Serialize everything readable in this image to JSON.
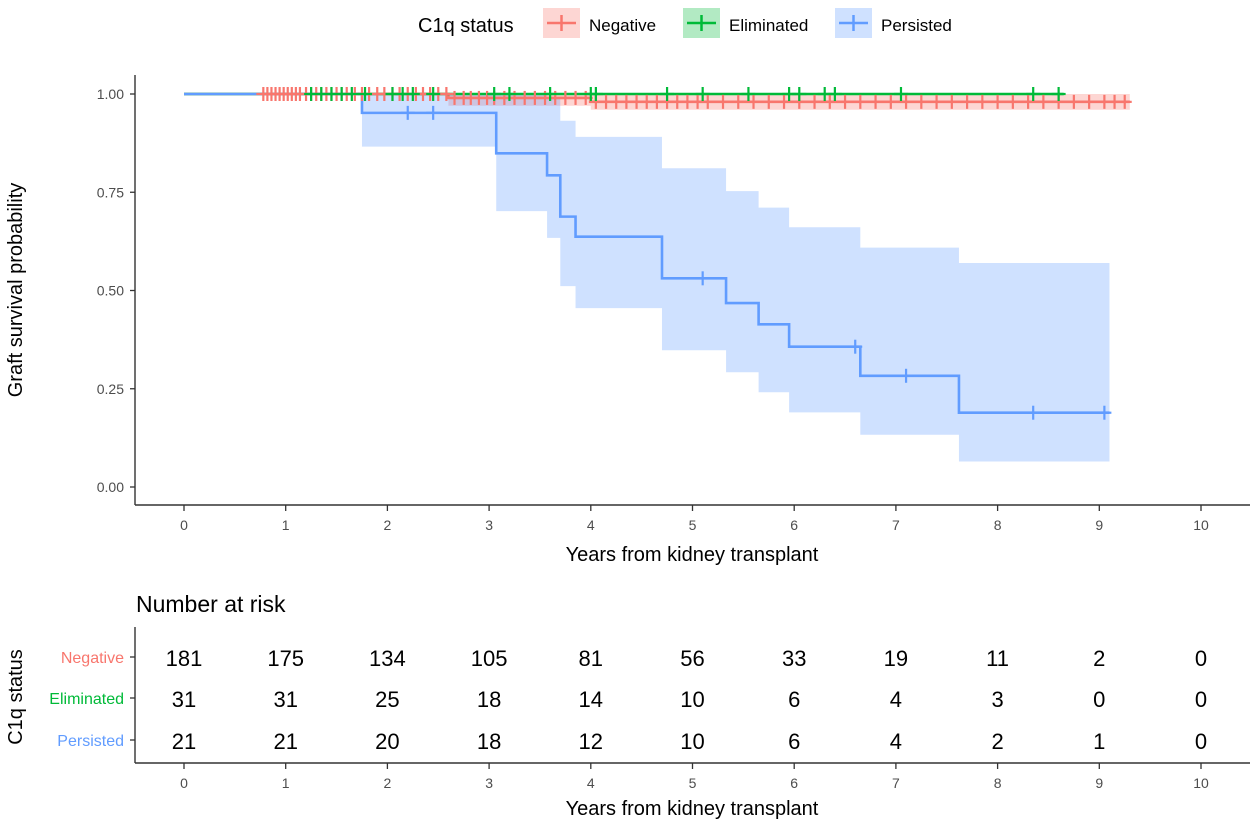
{
  "chart_data": {
    "type": "line",
    "subtype": "kaplan-meier step plot with confidence bands and number-at-risk table",
    "title": "",
    "xlabel": "Years from kidney transplant",
    "ylabel": "Graft survival probability",
    "xlim": [
      0,
      10
    ],
    "ylim": [
      0,
      1
    ],
    "x_ticks": [
      "0",
      "1",
      "2",
      "3",
      "4",
      "5",
      "6",
      "7",
      "8",
      "9",
      "10"
    ],
    "y_ticks": [
      "0.00",
      "0.25",
      "0.50",
      "0.75",
      "1.00"
    ],
    "legend": {
      "title": "C1q status",
      "position": "top",
      "entries": [
        "Negative",
        "Eliminated",
        "Persisted"
      ]
    },
    "series": [
      {
        "name": "Negative",
        "color": "#F8766D",
        "steps": [
          [
            0,
            1.0
          ],
          [
            2.6,
            0.99
          ],
          [
            4.0,
            0.98
          ],
          [
            9.3,
            0.98
          ]
        ],
        "ci_lower": [
          [
            0,
            1.0
          ],
          [
            2.6,
            0.97
          ],
          [
            4.0,
            0.96
          ],
          [
            9.3,
            0.96
          ]
        ],
        "ci_upper": [
          [
            0,
            1.0
          ],
          [
            2.6,
            1.0
          ],
          [
            4.0,
            1.0
          ],
          [
            9.3,
            1.0
          ]
        ],
        "censor_times": [
          0.78,
          0.82,
          0.86,
          0.9,
          0.94,
          0.98,
          1.02,
          1.06,
          1.1,
          1.14,
          1.2,
          1.25,
          1.3,
          1.35,
          1.4,
          1.45,
          1.5,
          1.55,
          1.6,
          1.68,
          1.75,
          1.82,
          1.9,
          1.97,
          2.05,
          2.12,
          2.2,
          2.28,
          2.35,
          2.42,
          2.5,
          2.58,
          2.66,
          2.75,
          2.82,
          2.9,
          2.98,
          3.05,
          3.15,
          3.25,
          3.35,
          3.45,
          3.55,
          3.65,
          3.75,
          3.85,
          3.95,
          4.05,
          4.15,
          4.25,
          4.35,
          4.45,
          4.55,
          4.65,
          4.75,
          4.85,
          4.95,
          5.05,
          5.15,
          5.3,
          5.45,
          5.6,
          5.75,
          5.9,
          6.05,
          6.2,
          6.35,
          6.5,
          6.65,
          6.8,
          6.95,
          7.1,
          7.25,
          7.4,
          7.55,
          7.7,
          7.85,
          8.0,
          8.15,
          8.3,
          8.45,
          8.6,
          8.75,
          8.9,
          9.05,
          9.15,
          9.25
        ]
      },
      {
        "name": "Eliminated",
        "color": "#00BA38",
        "steps": [
          [
            0,
            1.0
          ],
          [
            8.65,
            1.0
          ]
        ],
        "ci_lower": [
          [
            0,
            1.0
          ],
          [
            8.65,
            1.0
          ]
        ],
        "ci_upper": [
          [
            0,
            1.0
          ],
          [
            8.65,
            1.0
          ]
        ],
        "censor_times": [
          1.25,
          1.35,
          1.45,
          1.55,
          1.65,
          1.78,
          2.05,
          2.15,
          2.25,
          2.45,
          3.05,
          3.2,
          3.6,
          4.0,
          4.05,
          4.75,
          5.1,
          5.55,
          5.95,
          6.05,
          6.3,
          6.4,
          7.05,
          8.35,
          8.6
        ]
      },
      {
        "name": "Persisted",
        "color": "#619CFF",
        "steps": [
          [
            0,
            1.0
          ],
          [
            1.75,
            0.952
          ],
          [
            3.07,
            0.849
          ],
          [
            3.57,
            0.793
          ],
          [
            3.7,
            0.688
          ],
          [
            3.85,
            0.637
          ],
          [
            4.7,
            0.531
          ],
          [
            5.33,
            0.468
          ],
          [
            5.65,
            0.414
          ],
          [
            5.95,
            0.357
          ],
          [
            6.65,
            0.283
          ],
          [
            7.62,
            0.189
          ],
          [
            9.1,
            0.189
          ]
        ],
        "ci_lower": [
          [
            0,
            1.0
          ],
          [
            1.75,
            0.866
          ],
          [
            3.07,
            0.702
          ],
          [
            3.57,
            0.634
          ],
          [
            3.7,
            0.511
          ],
          [
            3.85,
            0.455
          ],
          [
            4.7,
            0.348
          ],
          [
            5.33,
            0.292
          ],
          [
            5.65,
            0.241
          ],
          [
            5.95,
            0.19
          ],
          [
            6.65,
            0.133
          ],
          [
            7.62,
            0.065
          ],
          [
            9.1,
            0.065
          ]
        ],
        "ci_upper": [
          [
            0,
            1.0
          ],
          [
            1.75,
            1.0
          ],
          [
            3.07,
            1.0
          ],
          [
            3.57,
            0.992
          ],
          [
            3.7,
            0.932
          ],
          [
            3.85,
            0.891
          ],
          [
            4.7,
            0.811
          ],
          [
            5.33,
            0.753
          ],
          [
            5.65,
            0.711
          ],
          [
            5.95,
            0.661
          ],
          [
            6.65,
            0.609
          ],
          [
            7.62,
            0.57
          ],
          [
            9.1,
            0.57
          ]
        ],
        "censor_times": [
          2.2,
          2.45,
          5.1,
          6.6,
          7.1,
          8.35,
          9.05
        ]
      }
    ],
    "risk_table": {
      "title": "Number at risk",
      "ylabel": "C1q status",
      "xlabel": "Years from kidney transplant",
      "times": [
        "0",
        "1",
        "2",
        "3",
        "4",
        "5",
        "6",
        "7",
        "8",
        "9",
        "10"
      ],
      "rows": [
        {
          "name": "Negative",
          "color": "#F8766D",
          "counts": [
            "181",
            "175",
            "134",
            "105",
            "81",
            "56",
            "33",
            "19",
            "11",
            "2",
            "0"
          ]
        },
        {
          "name": "Eliminated",
          "color": "#00BA38",
          "counts": [
            "31",
            "31",
            "25",
            "18",
            "14",
            "10",
            "6",
            "4",
            "3",
            "0",
            "0"
          ]
        },
        {
          "name": "Persisted",
          "color": "#619CFF",
          "counts": [
            "21",
            "21",
            "20",
            "18",
            "12",
            "10",
            "6",
            "4",
            "2",
            "1",
            "0"
          ]
        }
      ]
    }
  }
}
